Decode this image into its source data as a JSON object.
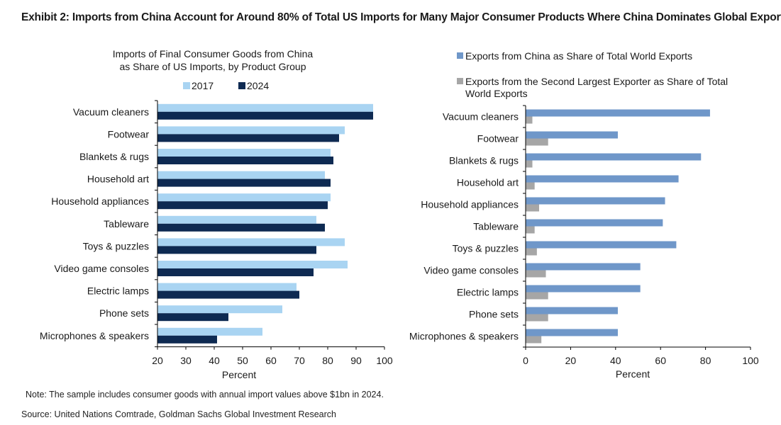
{
  "exhibit_title": "Exhibit 2: Imports from China Account for Around 80% of Total US Imports for Many Major Consumer Products Where China Dominates Global Exports",
  "note": "Note: The sample includes consumer goods with annual import values above $1bn in 2024.",
  "source": "Source: United Nations Comtrade, Goldman Sachs Global Investment Research",
  "colors": {
    "light_blue": "#a9d4f2",
    "dark_navy": "#0e2a52",
    "mid_blue": "#6f97c9",
    "gray": "#a6a6a6"
  },
  "chart_data": [
    {
      "type": "bar",
      "orientation": "horizontal",
      "title": [
        "Imports of Final Consumer Goods from China",
        "as Share of US Imports, by Product Group"
      ],
      "xlabel": "Percent",
      "xlim": [
        20,
        100
      ],
      "xticks": [
        20,
        30,
        40,
        50,
        60,
        70,
        80,
        90,
        100
      ],
      "legend_position": "top",
      "categories": [
        "Vacuum cleaners",
        "Footwear",
        "Blankets & rugs",
        "Household art",
        "Household appliances",
        "Tableware",
        "Toys & puzzles",
        "Video game consoles",
        "Electric lamps",
        "Phone sets",
        "Microphones & speakers"
      ],
      "series": [
        {
          "name": "2017",
          "color": "#a9d4f2",
          "values": [
            96,
            86,
            81,
            79,
            81,
            76,
            86,
            87,
            69,
            64,
            57
          ]
        },
        {
          "name": "2024",
          "color": "#0e2a52",
          "values": [
            96,
            84,
            82,
            81,
            80,
            79,
            76,
            75,
            70,
            45,
            41
          ]
        }
      ]
    },
    {
      "type": "bar",
      "orientation": "horizontal",
      "xlabel": "Percent",
      "xlim": [
        0,
        100
      ],
      "xticks": [
        0,
        20,
        40,
        60,
        80,
        100
      ],
      "legend_position": "top",
      "categories": [
        "Vacuum cleaners",
        "Footwear",
        "Blankets & rugs",
        "Household art",
        "Household appliances",
        "Tableware",
        "Toys & puzzles",
        "Video game consoles",
        "Electric lamps",
        "Phone sets",
        "Microphones & speakers"
      ],
      "series": [
        {
          "name": "Exports from China as Share of Total World Exports",
          "color": "#6f97c9",
          "values": [
            82,
            41,
            78,
            68,
            62,
            61,
            67,
            51,
            51,
            41,
            41
          ]
        },
        {
          "name": "Exports from the Second Largest Exporter as Share of Total World Exports",
          "color": "#a6a6a6",
          "values": [
            3,
            10,
            3,
            4,
            6,
            4,
            5,
            9,
            10,
            10,
            7
          ]
        }
      ]
    }
  ]
}
